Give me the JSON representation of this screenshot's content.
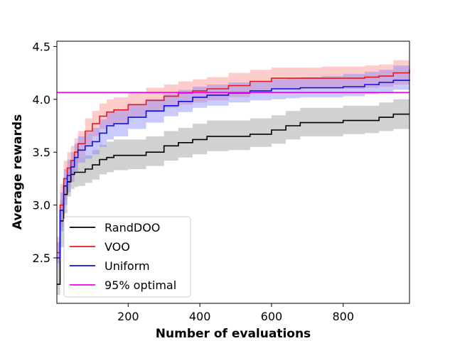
{
  "chart_data": {
    "type": "line",
    "title": "",
    "xlabel": "Number of evaluations",
    "ylabel": "Average rewards",
    "xlim": [
      1,
      985
    ],
    "ylim": [
      2.07,
      4.55
    ],
    "xticks": [
      200,
      400,
      600,
      800
    ],
    "yticks": [
      2.5,
      3.0,
      3.5,
      4.0,
      4.5
    ],
    "xtick_labels": [
      "200",
      "400",
      "600",
      "800"
    ],
    "ytick_labels": [
      "2.5",
      "3.0",
      "3.5",
      "4.0",
      "4.5"
    ],
    "grid": false,
    "legend_position": "lower-left",
    "hline": {
      "name": "95% optimal",
      "y": 4.065,
      "color": "#ee00ee"
    },
    "series": [
      {
        "name": "RandDOO",
        "color": "#000000",
        "band_color": "#8c8c8c",
        "x": [
          1,
          10,
          20,
          30,
          40,
          50,
          60,
          80,
          100,
          120,
          140,
          160,
          200,
          250,
          300,
          340,
          380,
          420,
          480,
          540,
          600,
          640,
          680,
          740,
          800,
          860,
          900,
          940,
          985
        ],
        "y": [
          2.25,
          2.85,
          3.1,
          3.22,
          3.29,
          3.31,
          3.31,
          3.34,
          3.38,
          3.43,
          3.45,
          3.47,
          3.47,
          3.5,
          3.56,
          3.59,
          3.62,
          3.65,
          3.65,
          3.67,
          3.71,
          3.75,
          3.78,
          3.78,
          3.8,
          3.8,
          3.83,
          3.86,
          3.86
        ],
        "lower": [
          2.15,
          2.6,
          2.92,
          3.08,
          3.15,
          3.17,
          3.18,
          3.21,
          3.24,
          3.29,
          3.31,
          3.33,
          3.34,
          3.37,
          3.42,
          3.45,
          3.48,
          3.51,
          3.52,
          3.55,
          3.58,
          3.62,
          3.65,
          3.65,
          3.67,
          3.68,
          3.7,
          3.72,
          3.72
        ],
        "upper": [
          2.4,
          3.05,
          3.25,
          3.36,
          3.43,
          3.45,
          3.45,
          3.47,
          3.52,
          3.57,
          3.6,
          3.62,
          3.62,
          3.65,
          3.7,
          3.73,
          3.77,
          3.8,
          3.8,
          3.82,
          3.85,
          3.89,
          3.92,
          3.92,
          3.94,
          3.94,
          3.97,
          4.0,
          4.0
        ]
      },
      {
        "name": "VOO",
        "color": "#e41a1c",
        "band_color": "#ff8080",
        "x": [
          1,
          10,
          20,
          30,
          40,
          50,
          60,
          80,
          100,
          120,
          140,
          160,
          200,
          250,
          300,
          340,
          380,
          420,
          480,
          540,
          600,
          640,
          680,
          740,
          800,
          860,
          900,
          940,
          985
        ],
        "y": [
          2.55,
          3.0,
          3.25,
          3.35,
          3.42,
          3.5,
          3.58,
          3.7,
          3.77,
          3.84,
          3.88,
          3.9,
          3.95,
          3.99,
          4.03,
          4.06,
          4.08,
          4.1,
          4.13,
          4.17,
          4.2,
          4.2,
          4.2,
          4.2,
          4.2,
          4.21,
          4.22,
          4.25,
          4.28
        ],
        "lower": [
          2.45,
          2.8,
          3.05,
          3.18,
          3.28,
          3.37,
          3.45,
          3.57,
          3.65,
          3.72,
          3.76,
          3.78,
          3.83,
          3.88,
          3.92,
          3.95,
          3.97,
          3.99,
          4.02,
          4.06,
          4.1,
          4.1,
          4.1,
          4.1,
          4.1,
          4.11,
          4.12,
          4.14,
          4.16
        ],
        "upper": [
          2.7,
          3.2,
          3.42,
          3.5,
          3.56,
          3.63,
          3.7,
          3.82,
          3.89,
          3.96,
          4.0,
          4.02,
          4.07,
          4.11,
          4.14,
          4.17,
          4.19,
          4.21,
          4.25,
          4.28,
          4.3,
          4.3,
          4.3,
          4.31,
          4.31,
          4.32,
          4.33,
          4.37,
          4.43
        ]
      },
      {
        "name": "Uniform",
        "color": "#1010dd",
        "band_color": "#7a7aff",
        "x": [
          1,
          10,
          20,
          30,
          40,
          50,
          60,
          80,
          100,
          120,
          140,
          160,
          200,
          250,
          300,
          340,
          380,
          420,
          480,
          540,
          600,
          640,
          680,
          740,
          800,
          860,
          900,
          940,
          985
        ],
        "y": [
          2.5,
          2.95,
          3.18,
          3.28,
          3.36,
          3.45,
          3.52,
          3.56,
          3.6,
          3.68,
          3.75,
          3.77,
          3.83,
          3.89,
          3.94,
          3.98,
          4.02,
          4.04,
          4.06,
          4.08,
          4.1,
          4.1,
          4.11,
          4.11,
          4.12,
          4.14,
          4.16,
          4.18,
          4.19
        ],
        "lower": [
          2.4,
          2.75,
          3.0,
          3.12,
          3.22,
          3.32,
          3.4,
          3.44,
          3.48,
          3.55,
          3.62,
          3.65,
          3.72,
          3.78,
          3.84,
          3.88,
          3.92,
          3.94,
          3.97,
          3.99,
          4.0,
          4.01,
          4.02,
          4.02,
          4.03,
          4.05,
          4.07,
          4.09,
          4.1
        ],
        "upper": [
          2.65,
          3.12,
          3.34,
          3.43,
          3.5,
          3.58,
          3.65,
          3.69,
          3.73,
          3.81,
          3.88,
          3.9,
          3.95,
          4.0,
          4.05,
          4.09,
          4.12,
          4.14,
          4.16,
          4.17,
          4.19,
          4.2,
          4.21,
          4.22,
          4.24,
          4.26,
          4.28,
          4.32,
          4.33
        ]
      }
    ],
    "legend": [
      {
        "label": "RandDOO",
        "color": "#000000"
      },
      {
        "label": "VOO",
        "color": "#e41a1c"
      },
      {
        "label": "Uniform",
        "color": "#1010dd"
      },
      {
        "label": "95% optimal",
        "color": "#ee00ee"
      }
    ]
  }
}
